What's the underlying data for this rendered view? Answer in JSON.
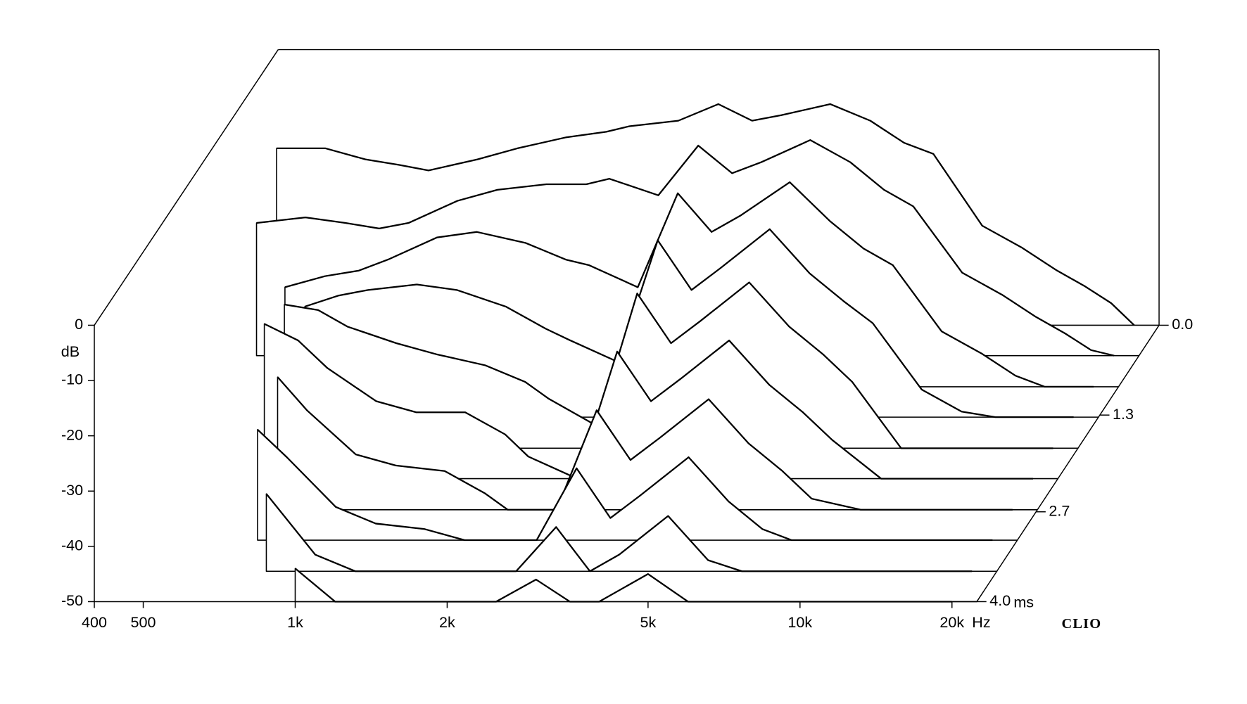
{
  "chart_data": {
    "type": "waterfall",
    "y_label": "dB",
    "x_label": "Hz",
    "z_label": "ms",
    "watermark": "CLIO",
    "xlog": true,
    "xlim": [
      400,
      22400
    ],
    "ylim": [
      -50,
      0
    ],
    "zlim": [
      0,
      4
    ],
    "xticks": [
      400,
      500,
      {
        "value": 1000,
        "label": "1k"
      },
      {
        "value": 2000,
        "label": "2k"
      },
      {
        "value": 5000,
        "label": "5k"
      },
      {
        "value": 10000,
        "label": "10k"
      },
      {
        "value": 20000,
        "label": "20k"
      }
    ],
    "yticks": [
      0,
      -10,
      -20,
      -30,
      -40,
      -50
    ],
    "zticks": [
      {
        "value": 0,
        "label": "0.0"
      },
      1.3,
      2.7,
      {
        "value": 4,
        "label": "4.0"
      }
    ],
    "color": "#000000",
    "x": [
      400,
      500,
      600,
      700,
      800,
      1000,
      1200,
      1500,
      1800,
      2000,
      2500,
      3000,
      3500,
      4000,
      5000,
      6000,
      7000,
      8000,
      10000,
      12000,
      14000,
      16000,
      18000,
      20000
    ],
    "series": [
      {
        "t": 0,
        "values": [
          -18,
          -18,
          -20,
          -21,
          -22,
          -20,
          -18,
          -16,
          -15,
          -14,
          -13,
          -10,
          -13,
          -12,
          -10,
          -13,
          -17,
          -19,
          -32,
          -36,
          -40,
          -43,
          -46,
          -50
        ]
      },
      {
        "t": 0.44,
        "values": [
          -26,
          -25,
          -26,
          -27,
          -26,
          -22,
          -20,
          -19,
          -19,
          -18,
          -21,
          -12,
          -17,
          -15,
          -11,
          -15,
          -20,
          -23,
          -35,
          -39,
          -43,
          -46,
          -49,
          -50
        ]
      },
      {
        "t": 0.89,
        "values": [
          null,
          -32,
          -30,
          -29,
          -27,
          -23,
          -22,
          -24,
          -27,
          -28,
          -32,
          -15,
          -22,
          -19,
          -13,
          -20,
          -25,
          -28,
          -40,
          -44,
          -48,
          -50,
          -50,
          -50
        ]
      },
      {
        "t": 1.33,
        "values": [
          null,
          null,
          -30,
          -28,
          -27,
          -26,
          -27,
          -30,
          -34,
          -36,
          -40,
          -18,
          -27,
          -23,
          -16,
          -24,
          -29,
          -33,
          -45,
          -49,
          -50,
          -50,
          -50,
          -50
        ]
      },
      {
        "t": 1.78,
        "values": [
          null,
          null,
          -24,
          -25,
          -28,
          -31,
          -33,
          -35,
          -38,
          -41,
          -46,
          -22,
          -31,
          -27,
          -20,
          -28,
          -33,
          -38,
          -50,
          -50,
          -50,
          -50,
          -50,
          -50
        ]
      },
      {
        "t": 2.22,
        "values": [
          null,
          null,
          -22,
          -25,
          -30,
          -36,
          -38,
          -38,
          -42,
          -46,
          -50,
          -27,
          -36,
          -32,
          -25,
          -33,
          -38,
          -43,
          -50,
          -50,
          -50,
          -50,
          -50,
          -50
        ]
      },
      {
        "t": 2.67,
        "values": [
          null,
          null,
          null,
          -26,
          -32,
          -40,
          -42,
          -43,
          -47,
          -50,
          -50,
          -32,
          -41,
          -37,
          -30,
          -38,
          -43,
          -48,
          -50,
          -50,
          -50,
          -50,
          -50,
          -50
        ]
      },
      {
        "t": 3.11,
        "values": [
          null,
          null,
          null,
          -30,
          -35,
          -44,
          -47,
          -48,
          -50,
          -50,
          -50,
          -37,
          -46,
          -42,
          -35,
          -43,
          -48,
          -50,
          -50,
          -50,
          -50,
          -50,
          -50,
          -50
        ]
      },
      {
        "t": 3.56,
        "values": [
          null,
          null,
          null,
          null,
          -36,
          -47,
          -50,
          -50,
          -50,
          -50,
          -50,
          -42,
          -50,
          -47,
          -40,
          -48,
          -50,
          -50,
          -50,
          -50,
          -50,
          -50,
          -50,
          -50
        ]
      },
      {
        "t": 4,
        "values": [
          null,
          null,
          null,
          null,
          null,
          -44,
          -50,
          -50,
          -50,
          -50,
          -50,
          -46,
          -50,
          -50,
          -45,
          -50,
          -50,
          -50,
          -50,
          -50,
          -50,
          -50,
          -50,
          -50
        ]
      }
    ]
  }
}
